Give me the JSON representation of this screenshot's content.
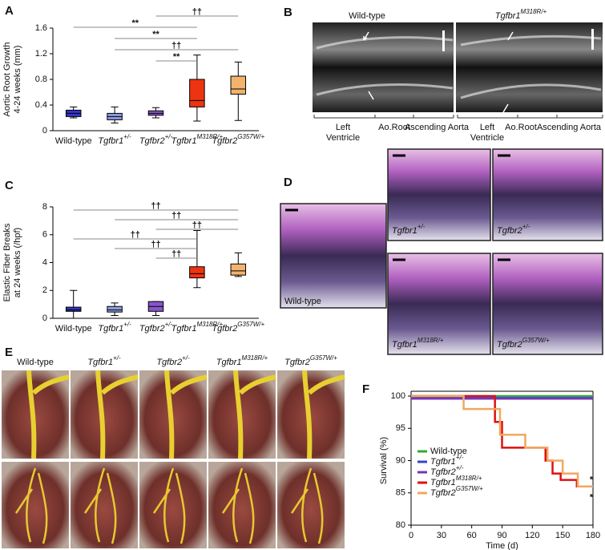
{
  "panel_labels": [
    "A",
    "B",
    "C",
    "D",
    "E",
    "F"
  ],
  "chart_data": [
    {
      "type": "box",
      "ylabel": [
        "Aortic Root Growth",
        "4-24 weeks (mm)"
      ],
      "categories": [
        "Wild-type",
        "Tgfbr1+/-",
        "Tgfbr2+/-",
        "Tgfbr1M318R/+",
        "Tgfbr2G357W/+"
      ],
      "values": [
        [
          0.2,
          0.22,
          0.27,
          0.32,
          0.37
        ],
        [
          0.12,
          0.17,
          0.22,
          0.27,
          0.37
        ],
        [
          0.2,
          0.24,
          0.27,
          0.31,
          0.36
        ],
        [
          0.15,
          0.37,
          0.47,
          0.8,
          1.18
        ],
        [
          0.16,
          0.57,
          0.65,
          0.85,
          1.07
        ]
      ],
      "colors": [
        "#3333cc",
        "#8c9be0",
        "#8855cc",
        "#ee3311",
        "#f2b36e"
      ],
      "ylim": [
        0,
        1.6
      ],
      "yticks": [
        0,
        0.4,
        0.8,
        1.2,
        1.6
      ],
      "annotations": [
        {
          "label": "††",
          "from": "Tgfbr2+/-",
          "to": "Tgfbr2G357W/+"
        },
        {
          "label": "**",
          "from": "Wild-type",
          "to": "Tgfbr1M318R/+"
        },
        {
          "label": "**",
          "from": "Tgfbr1+/-",
          "to": "Tgfbr1M318R/+"
        },
        {
          "label": "††",
          "from": "Tgfbr1+/-",
          "to": "Tgfbr2G357W/+"
        },
        {
          "label": "**",
          "from": "Tgfbr2+/-",
          "to": "Tgfbr1M318R/+"
        }
      ]
    },
    {
      "type": "box",
      "ylabel": [
        "Elastic Fiber Breaks",
        "at 24 weeks (/hpf)"
      ],
      "categories": [
        "Wild-type",
        "Tgfbr1+/-",
        "Tgfbr2+/-",
        "Tgfbr1M318R/+",
        "Tgfbr2G357W/+"
      ],
      "values": [
        [
          0,
          0.5,
          0.6,
          0.8,
          2.0
        ],
        [
          0.2,
          0.45,
          0.6,
          0.85,
          1.1
        ],
        [
          0.2,
          0.5,
          0.85,
          1.2,
          1.2
        ],
        [
          2.2,
          2.9,
          3.2,
          3.7,
          6.3
        ],
        [
          3.0,
          3.1,
          3.4,
          3.9,
          4.7
        ]
      ],
      "colors": [
        "#3333cc",
        "#8c9be0",
        "#8855cc",
        "#ee3311",
        "#f2b36e"
      ],
      "ylim": [
        0,
        8
      ],
      "yticks": [
        0,
        2,
        4,
        6,
        8
      ],
      "annotations": [
        {
          "label": "††",
          "from": "Wild-type",
          "to": "Tgfbr2G357W/+"
        },
        {
          "label": "††",
          "from": "Tgfbr1+/-",
          "to": "Tgfbr2G357W/+"
        },
        {
          "label": "††",
          "from": "Tgfbr2+/-",
          "to": "Tgfbr2G357W/+"
        },
        {
          "label": "††",
          "from": "Wild-type",
          "to": "Tgfbr1M318R/+"
        },
        {
          "label": "††",
          "from": "Tgfbr1+/-",
          "to": "Tgfbr1M318R/+"
        },
        {
          "label": "††",
          "from": "Tgfbr2+/-",
          "to": "Tgfbr1M318R/+"
        }
      ]
    },
    {
      "type": "line",
      "step": true,
      "xlabel": "Time (d)",
      "ylabel": "Survival (%)",
      "xlim": [
        0,
        180
      ],
      "xticks": [
        0,
        30,
        60,
        90,
        120,
        150,
        180
      ],
      "ylim": [
        80,
        100
      ],
      "yticks": [
        80,
        85,
        90,
        95,
        100
      ],
      "legend": "lower left",
      "series": [
        {
          "name": "Wild-type",
          "color": "#33aa33",
          "x": [
            0,
            180
          ],
          "values": [
            100,
            100
          ]
        },
        {
          "name": "Tgfbr1+/-",
          "color": "#3344cc",
          "x": [
            0,
            180
          ],
          "values": [
            99.7,
            99.7
          ]
        },
        {
          "name": "Tgfbr2+/-",
          "color": "#7733bb",
          "x": [
            0,
            180
          ],
          "values": [
            99.6,
            99.6
          ]
        },
        {
          "name": "Tgfbr1M318R/+",
          "color": "#dd1111",
          "x": [
            0,
            83,
            83,
            90,
            90,
            133,
            133,
            140,
            140,
            148,
            148,
            164,
            164,
            180
          ],
          "values": [
            100,
            100,
            96,
            96,
            92,
            92,
            90,
            90,
            88,
            88,
            87,
            87,
            86,
            86
          ]
        },
        {
          "name": "Tgfbr2G357W/+",
          "color": "#f0a860",
          "x": [
            0,
            52,
            52,
            88,
            88,
            113,
            113,
            135,
            135,
            150,
            150,
            165,
            165,
            180
          ],
          "values": [
            100,
            100,
            98,
            98,
            94,
            94,
            92,
            92,
            90,
            90,
            88,
            88,
            86,
            86
          ]
        }
      ],
      "annotations": [
        {
          "label": "*",
          "series": "Tgfbr2G357W/+"
        },
        {
          "label": "*",
          "series": "Tgfbr1M318R/+"
        }
      ]
    }
  ],
  "echo": {
    "columns": [
      {
        "title": "Wild-type",
        "regions": [
          [
            "Left",
            "Ventricle"
          ],
          "Ao.Root",
          "Ascending Aorta"
        ]
      },
      {
        "title": "Tgfbr1M318R/+",
        "regions": [
          [
            "Left",
            "Ventricle"
          ],
          "Ao.Root",
          "Ascending Aorta"
        ]
      }
    ]
  },
  "histology": {
    "labels": [
      "Wild-type",
      "Tgfbr1+/-",
      "Tgfbr2+/-",
      "Tgfbr1M318R/+",
      "Tgfbr2G357W/+"
    ]
  },
  "photos": {
    "columns": [
      "Wild-type",
      "Tgfbr1+/-",
      "Tgfbr2+/-",
      "Tgfbr1M318R/+",
      "Tgfbr2G357W/+"
    ]
  }
}
